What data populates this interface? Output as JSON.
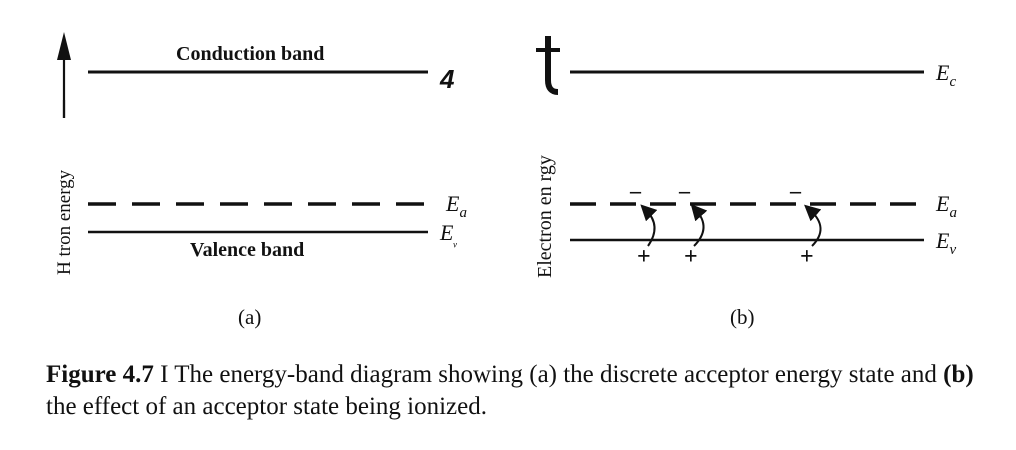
{
  "panel_a": {
    "y_axis_label": "H  tron energy",
    "conduction_label": "Conduction band",
    "valence_label": "Valence band",
    "corner_mark": "4",
    "label_ea": "E",
    "label_ea_sub": "a",
    "label_ev": "E",
    "label_ev_sub": "ᵥ",
    "sublabel": "(a)"
  },
  "panel_b": {
    "y_axis_label": "Electron  en  rgy",
    "label_ec": "E",
    "label_ec_sub": "c",
    "label_ea": "E",
    "label_ea_sub": "a",
    "label_ev": "E",
    "label_ev_sub": "v",
    "minus": "–",
    "plus": "+",
    "sublabel": "(b)"
  },
  "caption": {
    "figure_label": "Figure 4.7",
    "separator": " I ",
    "part1": "The energy-band diagram showing (a) the discrete acceptor energy state and ",
    "part_b": "(b)",
    "part2": " the effect of an acceptor state being ionized."
  },
  "colors": {
    "ink": "#111111",
    "background": "#ffffff"
  }
}
